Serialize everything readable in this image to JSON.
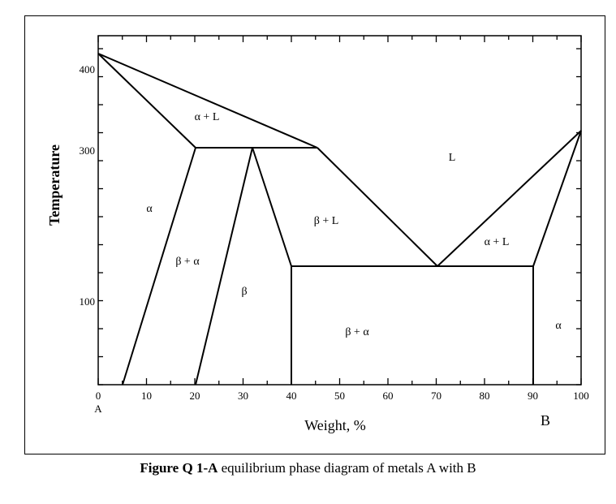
{
  "diagram": {
    "y_axis": {
      "label": "Temperature",
      "ticks": [
        "400",
        "300",
        "100"
      ]
    },
    "x_axis": {
      "label": "Weight, %",
      "ticks": [
        "0",
        "10",
        "20",
        "30",
        "40",
        "50",
        "60",
        "70",
        "80",
        "90",
        "100"
      ],
      "end_labels": {
        "left": "A",
        "right": "B"
      }
    },
    "regions": {
      "alpha_liquid_left": "α + L",
      "liquid": "L",
      "alpha_left": "α",
      "beta_liquid": "β + L",
      "alpha_liquid_right": "α + L",
      "beta_alpha_left": "β + α",
      "beta": "β",
      "beta_alpha_bottom": "β + α",
      "alpha_right": "α"
    }
  },
  "caption": {
    "bold": "Figure Q 1-A",
    "text": " equilibrium phase diagram of metals A with B"
  }
}
